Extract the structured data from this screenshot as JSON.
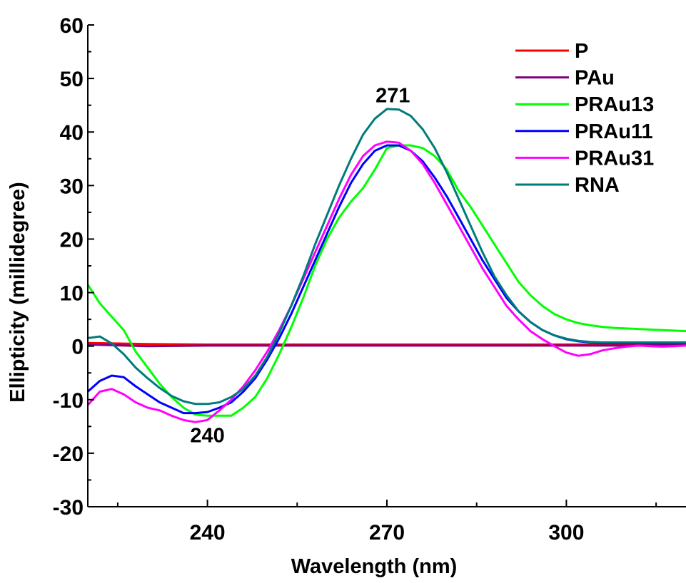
{
  "chart_data": {
    "type": "line",
    "xlabel": "Wavelength (nm)",
    "ylabel": "Ellipticity (millidegree)",
    "xlim": [
      220,
      320
    ],
    "ylim": [
      -30,
      60
    ],
    "xticks": [
      240,
      270,
      300
    ],
    "yticks": [
      -30,
      -20,
      -10,
      0,
      10,
      20,
      30,
      40,
      50,
      60
    ],
    "legend_position": "top-right",
    "annotations": [
      {
        "text": "271",
        "x": 271,
        "y": 44.5
      },
      {
        "text": "240",
        "x": 240,
        "y": -12.5
      }
    ],
    "series": [
      {
        "name": "P",
        "color": "#ff0000",
        "points": [
          [
            220,
            0.6
          ],
          [
            230,
            0.4
          ],
          [
            240,
            0.3
          ],
          [
            250,
            0.3
          ],
          [
            260,
            0.3
          ],
          [
            270,
            0.3
          ],
          [
            280,
            0.3
          ],
          [
            290,
            0.3
          ],
          [
            300,
            0.3
          ],
          [
            310,
            0.3
          ],
          [
            320,
            0.3
          ]
        ]
      },
      {
        "name": "PAu",
        "color": "#800080",
        "points": [
          [
            220,
            0.3
          ],
          [
            230,
            0.0
          ],
          [
            240,
            0.1
          ],
          [
            250,
            0.1
          ],
          [
            260,
            0.1
          ],
          [
            270,
            0.1
          ],
          [
            280,
            0.1
          ],
          [
            290,
            0.1
          ],
          [
            300,
            0.1
          ],
          [
            310,
            0.1
          ],
          [
            320,
            0.2
          ]
        ]
      },
      {
        "name": "PRAu13",
        "color": "#00ff00",
        "points": [
          [
            220,
            11.5
          ],
          [
            222,
            8
          ],
          [
            224,
            5.5
          ],
          [
            226,
            3
          ],
          [
            228,
            -1
          ],
          [
            230,
            -4
          ],
          [
            232,
            -7
          ],
          [
            234,
            -9.5
          ],
          [
            236,
            -11.5
          ],
          [
            238,
            -12.8
          ],
          [
            240,
            -13
          ],
          [
            242,
            -13
          ],
          [
            244,
            -13
          ],
          [
            246,
            -11.5
          ],
          [
            248,
            -9.5
          ],
          [
            250,
            -6
          ],
          [
            252,
            -1.5
          ],
          [
            254,
            3.5
          ],
          [
            256,
            9
          ],
          [
            258,
            15
          ],
          [
            260,
            20
          ],
          [
            262,
            24
          ],
          [
            264,
            27
          ],
          [
            266,
            29.5
          ],
          [
            268,
            33
          ],
          [
            270,
            37
          ],
          [
            272,
            37.5
          ],
          [
            274,
            37.5
          ],
          [
            276,
            37
          ],
          [
            278,
            35.5
          ],
          [
            280,
            33
          ],
          [
            282,
            29
          ],
          [
            284,
            26
          ],
          [
            286,
            22.5
          ],
          [
            288,
            19
          ],
          [
            290,
            15.5
          ],
          [
            292,
            12
          ],
          [
            294,
            9.5
          ],
          [
            296,
            7.5
          ],
          [
            298,
            6
          ],
          [
            300,
            5
          ],
          [
            302,
            4.3
          ],
          [
            304,
            3.9
          ],
          [
            306,
            3.6
          ],
          [
            308,
            3.4
          ],
          [
            310,
            3.3
          ],
          [
            312,
            3.2
          ],
          [
            314,
            3.1
          ],
          [
            316,
            3.0
          ],
          [
            318,
            2.9
          ],
          [
            320,
            2.8
          ]
        ]
      },
      {
        "name": "PRAu11",
        "color": "#0000ff",
        "points": [
          [
            220,
            -8.5
          ],
          [
            222,
            -6.5
          ],
          [
            224,
            -5.5
          ],
          [
            226,
            -5.8
          ],
          [
            228,
            -7.5
          ],
          [
            230,
            -9
          ],
          [
            232,
            -10.5
          ],
          [
            234,
            -11.5
          ],
          [
            236,
            -12.5
          ],
          [
            238,
            -12.5
          ],
          [
            240,
            -12.3
          ],
          [
            242,
            -11.5
          ],
          [
            244,
            -10.5
          ],
          [
            246,
            -8.5
          ],
          [
            248,
            -6
          ],
          [
            250,
            -2.5
          ],
          [
            252,
            1.5
          ],
          [
            254,
            6
          ],
          [
            256,
            11
          ],
          [
            258,
            16
          ],
          [
            260,
            21
          ],
          [
            262,
            26
          ],
          [
            264,
            30.5
          ],
          [
            266,
            34
          ],
          [
            268,
            36.5
          ],
          [
            270,
            37.5
          ],
          [
            272,
            37.5
          ],
          [
            274,
            36.5
          ],
          [
            276,
            34.5
          ],
          [
            278,
            31.5
          ],
          [
            280,
            28
          ],
          [
            282,
            24
          ],
          [
            284,
            20
          ],
          [
            286,
            16
          ],
          [
            288,
            12.5
          ],
          [
            290,
            9
          ],
          [
            292,
            6.5
          ],
          [
            294,
            4.5
          ],
          [
            296,
            3
          ],
          [
            298,
            2
          ],
          [
            300,
            1.3
          ],
          [
            302,
            0.9
          ],
          [
            304,
            0.7
          ],
          [
            306,
            0.6
          ],
          [
            308,
            0.6
          ],
          [
            310,
            0.6
          ],
          [
            312,
            0.6
          ],
          [
            314,
            0.6
          ],
          [
            316,
            0.6
          ],
          [
            318,
            0.6
          ],
          [
            320,
            0.6
          ]
        ]
      },
      {
        "name": "PRAu31",
        "color": "#ff00ff",
        "points": [
          [
            220,
            -11
          ],
          [
            222,
            -8.5
          ],
          [
            224,
            -8
          ],
          [
            226,
            -9
          ],
          [
            228,
            -10.5
          ],
          [
            230,
            -11.5
          ],
          [
            232,
            -12
          ],
          [
            234,
            -13
          ],
          [
            236,
            -13.8
          ],
          [
            238,
            -14.2
          ],
          [
            240,
            -13.8
          ],
          [
            242,
            -12
          ],
          [
            244,
            -10
          ],
          [
            246,
            -7.5
          ],
          [
            248,
            -4.5
          ],
          [
            250,
            -1
          ],
          [
            252,
            3
          ],
          [
            254,
            7.5
          ],
          [
            256,
            12.5
          ],
          [
            258,
            17.5
          ],
          [
            260,
            22.5
          ],
          [
            262,
            27.5
          ],
          [
            264,
            32
          ],
          [
            266,
            35.5
          ],
          [
            268,
            37.5
          ],
          [
            270,
            38.2
          ],
          [
            272,
            38
          ],
          [
            274,
            36.5
          ],
          [
            276,
            34
          ],
          [
            278,
            30.5
          ],
          [
            280,
            26.5
          ],
          [
            282,
            22.5
          ],
          [
            284,
            18.5
          ],
          [
            286,
            14.5
          ],
          [
            288,
            11
          ],
          [
            290,
            7.5
          ],
          [
            292,
            5
          ],
          [
            294,
            2.8
          ],
          [
            296,
            1.3
          ],
          [
            298,
            0
          ],
          [
            300,
            -1.2
          ],
          [
            302,
            -1.8
          ],
          [
            304,
            -1.5
          ],
          [
            306,
            -0.8
          ],
          [
            308,
            -0.4
          ],
          [
            310,
            -0.1
          ],
          [
            312,
            0.1
          ],
          [
            314,
            0
          ],
          [
            316,
            -0.1
          ],
          [
            318,
            0
          ],
          [
            320,
            0.1
          ]
        ]
      },
      {
        "name": "RNA",
        "color": "#007b7b",
        "points": [
          [
            220,
            1.5
          ],
          [
            222,
            1.8
          ],
          [
            224,
            0.5
          ],
          [
            226,
            -1.5
          ],
          [
            228,
            -4
          ],
          [
            230,
            -6
          ],
          [
            232,
            -7.8
          ],
          [
            234,
            -9.3
          ],
          [
            236,
            -10.3
          ],
          [
            238,
            -10.8
          ],
          [
            240,
            -10.8
          ],
          [
            242,
            -10.5
          ],
          [
            244,
            -9.5
          ],
          [
            246,
            -8
          ],
          [
            248,
            -5.5
          ],
          [
            250,
            -2
          ],
          [
            252,
            2.5
          ],
          [
            254,
            7.5
          ],
          [
            256,
            13
          ],
          [
            258,
            19
          ],
          [
            260,
            24.5
          ],
          [
            262,
            30
          ],
          [
            264,
            35
          ],
          [
            266,
            39.5
          ],
          [
            268,
            42.5
          ],
          [
            270,
            44.3
          ],
          [
            272,
            44.2
          ],
          [
            274,
            43
          ],
          [
            276,
            40.5
          ],
          [
            278,
            37
          ],
          [
            280,
            32.5
          ],
          [
            282,
            27.5
          ],
          [
            284,
            22.5
          ],
          [
            286,
            17.5
          ],
          [
            288,
            13
          ],
          [
            290,
            9.5
          ],
          [
            292,
            6.5
          ],
          [
            294,
            4.5
          ],
          [
            296,
            3
          ],
          [
            298,
            2
          ],
          [
            300,
            1.4
          ],
          [
            302,
            1
          ],
          [
            304,
            0.8
          ],
          [
            306,
            0.7
          ],
          [
            308,
            0.7
          ],
          [
            310,
            0.7
          ],
          [
            312,
            0.7
          ],
          [
            314,
            0.7
          ],
          [
            316,
            0.7
          ],
          [
            318,
            0.7
          ],
          [
            320,
            0.7
          ]
        ]
      }
    ]
  }
}
